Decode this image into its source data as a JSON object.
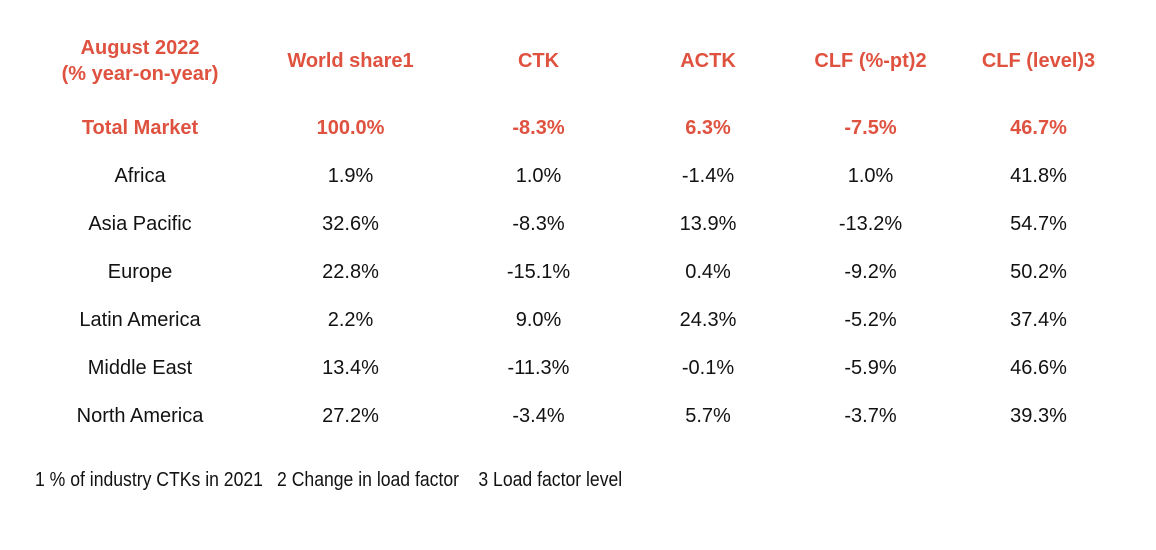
{
  "colors": {
    "accent": "#DF5240",
    "body_text": "#121212",
    "background": "#FFFFFF"
  },
  "chart_data": {
    "type": "table",
    "title_line1": "August 2022",
    "title_line2": "(% year-on-year)",
    "columns": [
      "World share1",
      "CTK",
      "ACTK",
      "CLF (%-pt)2",
      "CLF (level)3"
    ],
    "rows": [
      {
        "label": "Total Market",
        "highlight": true,
        "values": [
          "100.0%",
          "-8.3%",
          "6.3%",
          "-7.5%",
          "46.7%"
        ]
      },
      {
        "label": "Africa",
        "highlight": false,
        "values": [
          "1.9%",
          "1.0%",
          "-1.4%",
          "1.0%",
          "41.8%"
        ]
      },
      {
        "label": "Asia Pacific",
        "highlight": false,
        "values": [
          "32.6%",
          "-8.3%",
          "13.9%",
          "-13.2%",
          "54.7%"
        ]
      },
      {
        "label": "Europe",
        "highlight": false,
        "values": [
          "22.8%",
          "-15.1%",
          "0.4%",
          "-9.2%",
          "50.2%"
        ]
      },
      {
        "label": "Latin America",
        "highlight": false,
        "values": [
          "2.2%",
          "9.0%",
          "24.3%",
          "-5.2%",
          "37.4%"
        ]
      },
      {
        "label": "Middle East",
        "highlight": false,
        "values": [
          "13.4%",
          "-11.3%",
          "-0.1%",
          "-5.9%",
          "46.6%"
        ]
      },
      {
        "label": "North America",
        "highlight": false,
        "values": [
          "27.2%",
          "-3.4%",
          "5.7%",
          "-3.7%",
          "39.3%"
        ]
      }
    ],
    "footnotes": [
      "1 % of industry CTKs in 2021",
      "2 Change in load factor",
      "3 Load factor level"
    ]
  }
}
